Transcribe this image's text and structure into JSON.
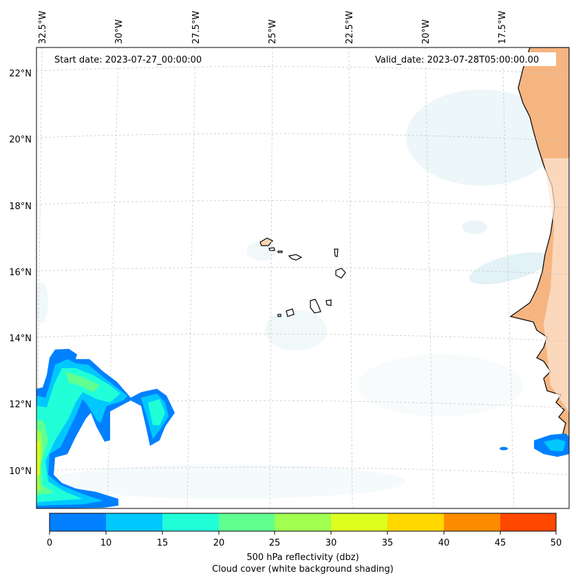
{
  "map": {
    "start_date": "Start date: 2023-07-27_00:00:00",
    "valid_date": "Valid_date: 2023-07-28T05:00:00.00",
    "lon_labels": [
      "32.5°W",
      "30°W",
      "27.5°W",
      "25°W",
      "22.5°W",
      "20°W",
      "17.5°W"
    ],
    "lat_labels": [
      "22°N",
      "20°N",
      "18°N",
      "16°N",
      "14°N",
      "12°N",
      "10°N"
    ],
    "land_color": "#f4a460",
    "coast_color": "#000000"
  },
  "colorbar": {
    "ticks": [
      "0",
      "10",
      "15",
      "20",
      "25",
      "30",
      "35",
      "40",
      "45",
      "50"
    ],
    "colors": [
      "#0080ff",
      "#00c8ff",
      "#20ffd8",
      "#60ff90",
      "#a0ff50",
      "#dcff20",
      "#ffd800",
      "#ff8c00",
      "#ff4800"
    ],
    "label_line1": "500 hPa reflectivity (dbz)",
    "label_line2": "Cloud cover (white background shading)"
  }
}
